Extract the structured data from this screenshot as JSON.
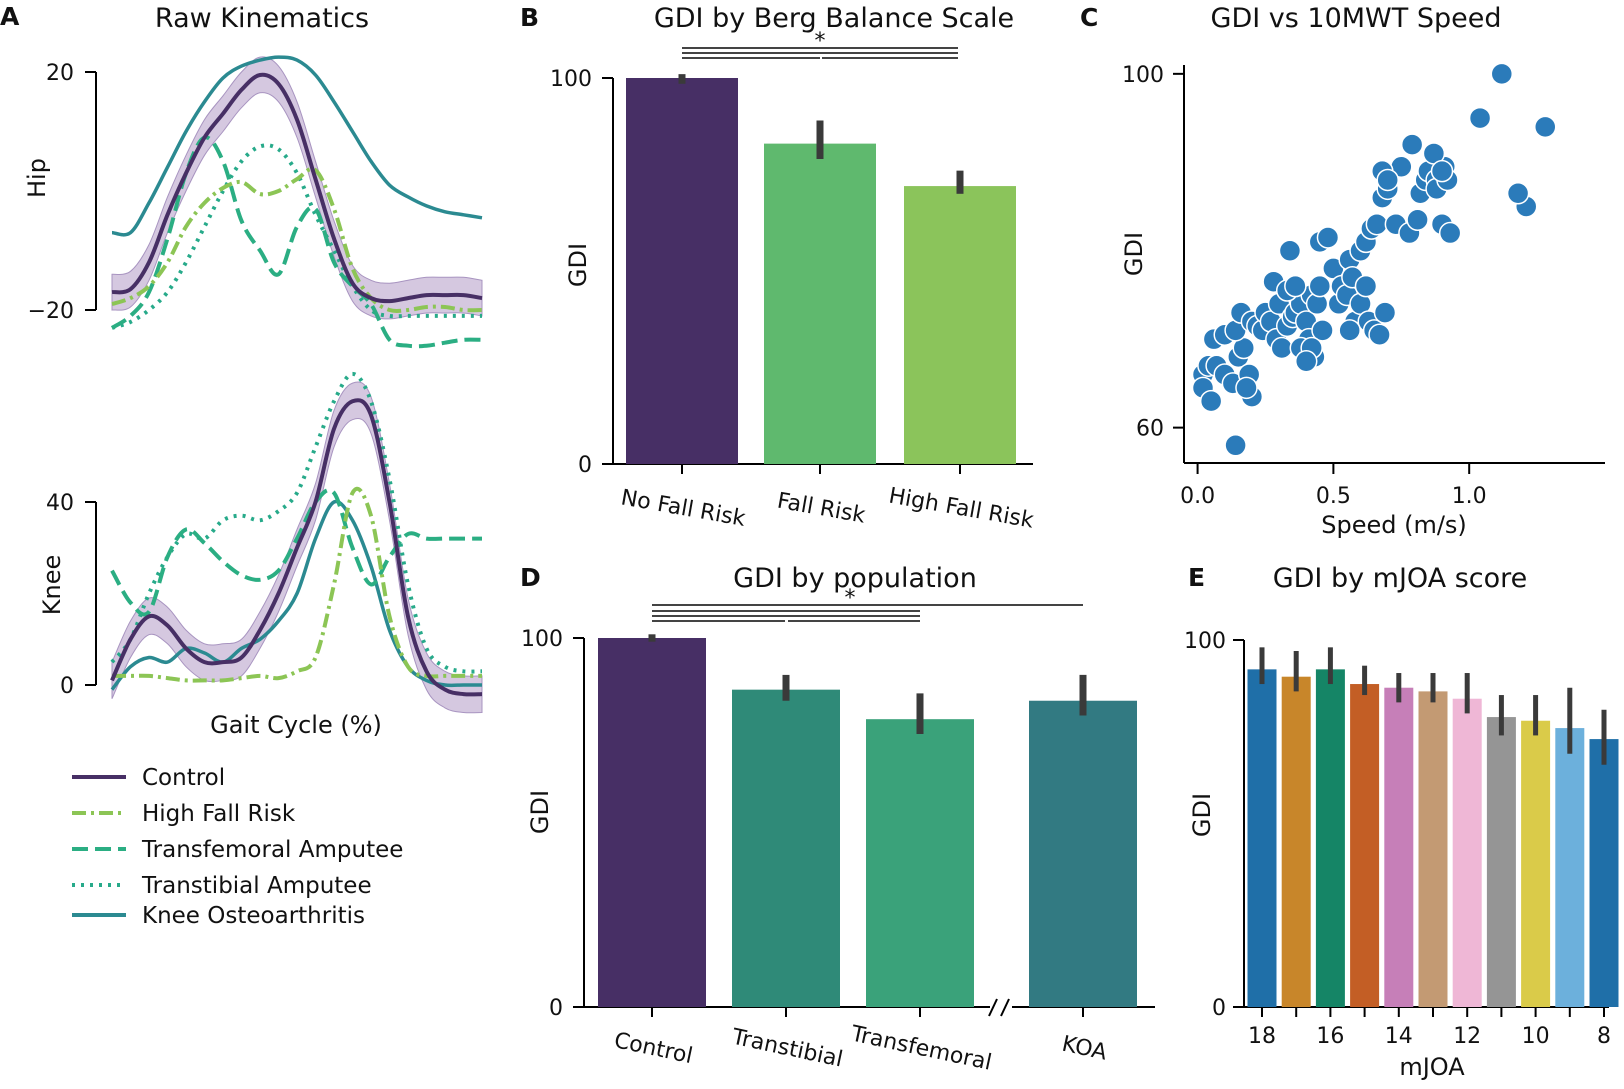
{
  "chart_data": [
    {
      "panel": "A",
      "type": "line",
      "title": "Raw Kinematics",
      "xlabel": "Gait Cycle (%)",
      "x": [
        0,
        5,
        10,
        15,
        20,
        25,
        30,
        35,
        40,
        45,
        50,
        55,
        60,
        65,
        70,
        75,
        80,
        85,
        90,
        95,
        100
      ],
      "subplots": [
        {
          "name": "hip",
          "ylabel": "Hip",
          "yticks": [
            "20",
            "−20"
          ],
          "ytick_values": [
            20,
            -20
          ],
          "ylim": [
            -24,
            26
          ],
          "series": [
            {
              "name": "Control",
              "values": [
                -17,
                -16.5,
                -12,
                -4,
                3,
                9,
                13,
                17,
                19.5,
                18,
                12,
                2,
                -8,
                -15.5,
                -18,
                -18.5,
                -18,
                -17.5,
                -17.5,
                -17.5,
                -18
              ]
            },
            {
              "name": "High Fall Risk",
              "values": [
                -19,
                -18,
                -16,
                -12,
                -6,
                -2,
                0.5,
                1.5,
                -0.5,
                0,
                2,
                3.5,
                -3,
                -13,
                -18,
                -20,
                -20,
                -19.5,
                -19.5,
                -20,
                -20
              ]
            },
            {
              "name": "Transfemoral Amputee",
              "values": [
                -23,
                -21,
                -17,
                -8,
                3,
                9,
                5,
                -5,
                -10,
                -14,
                -6,
                -3,
                -12,
                -16,
                -19,
                -25,
                -26,
                -26,
                -25.5,
                -25,
                -25
              ]
            },
            {
              "name": "Transtibial Amputee",
              "values": [
                -23,
                -22,
                -20,
                -17,
                -12,
                -6,
                0,
                5,
                7.5,
                7,
                3,
                -4,
                -10,
                -16,
                -20,
                -21,
                -21,
                -21,
                -21,
                -21,
                -21
              ]
            },
            {
              "name": "Knee Osteoarthritis",
              "values": [
                -7,
                -7,
                -2,
                4,
                10,
                15,
                19,
                21,
                22,
                22.5,
                22,
                19.5,
                15,
                10,
                5,
                1,
                -1,
                -2.5,
                -3.5,
                -4,
                -4.5
              ]
            }
          ]
        },
        {
          "name": "knee",
          "ylabel": "Knee",
          "yticks": [
            "40",
            "0"
          ],
          "ytick_values": [
            40,
            0
          ],
          "ylim": [
            -4,
            68
          ],
          "series": [
            {
              "name": "Control",
              "values": [
                1,
                10,
                15,
                13,
                8,
                5,
                5,
                6,
                12,
                20,
                30,
                40,
                56,
                62,
                59,
                40,
                15,
                3,
                -1,
                -2,
                -2
              ]
            },
            {
              "name": "High Fall Risk",
              "values": [
                2,
                2,
                2,
                1.5,
                1,
                1,
                1,
                1.5,
                2,
                1.5,
                3,
                6,
                22,
                42,
                37,
                15,
                4,
                2,
                2,
                2,
                2
              ]
            },
            {
              "name": "Transfemoral Amputee",
              "values": [
                25,
                18,
                16,
                28,
                34,
                31,
                27,
                24,
                23,
                25,
                32,
                40,
                42,
                30,
                22,
                28,
                33,
                32,
                32,
                32,
                32
              ]
            },
            {
              "name": "Transtibial Amputee",
              "values": [
                5,
                10,
                20,
                28,
                33,
                32,
                36,
                37,
                36,
                38,
                42,
                52,
                62,
                68,
                62,
                45,
                22,
                8,
                4,
                3,
                3
              ]
            },
            {
              "name": "Knee Osteoarthritis",
              "values": [
                -1,
                4,
                6,
                5,
                8,
                7,
                5,
                8,
                10,
                14,
                20,
                32,
                40,
                36,
                26,
                12,
                4,
                1,
                0,
                0,
                0
              ]
            }
          ]
        }
      ],
      "legend": [
        "Control",
        "High Fall Risk",
        "Transfemoral Amputee",
        "Transtibial Amputee",
        "Knee Osteoarthritis"
      ],
      "legend_position": "bottom"
    },
    {
      "panel": "B",
      "type": "bar",
      "title": "GDI by Berg Balance Scale",
      "ylabel": "GDI",
      "ylim": [
        0,
        100
      ],
      "yticks": [
        0,
        100
      ],
      "categories": [
        "No Fall Risk",
        "Fall Risk",
        "High Fall Risk"
      ],
      "values": [
        100,
        83,
        72
      ],
      "errors": [
        [
          98.5,
          101
        ],
        [
          79,
          89
        ],
        [
          70,
          76
        ]
      ],
      "significance": "*"
    },
    {
      "panel": "C",
      "type": "scatter",
      "title": "GDI vs 10MWT Speed",
      "xlabel": "Speed (m/s)",
      "ylabel": "GDI",
      "xlim": [
        -0.05,
        1.5
      ],
      "ylim": [
        56,
        101
      ],
      "xticks": [
        "0.0",
        "0.5",
        "1.0"
      ],
      "xtick_values": [
        0.0,
        0.5,
        1.0
      ],
      "yticks": [
        "100",
        "60"
      ],
      "ytick_values": [
        100,
        60
      ],
      "points": [
        [
          0.14,
          58
        ],
        [
          0.02,
          66
        ],
        [
          0.04,
          67
        ],
        [
          0.02,
          64.5
        ],
        [
          0.05,
          63
        ],
        [
          0.07,
          67
        ],
        [
          0.1,
          66
        ],
        [
          0.13,
          65
        ],
        [
          0.15,
          68
        ],
        [
          0.17,
          69
        ],
        [
          0.19,
          66
        ],
        [
          0.2,
          63.5
        ],
        [
          0.18,
          64.5
        ],
        [
          0.06,
          70
        ],
        [
          0.1,
          70.5
        ],
        [
          0.14,
          71
        ],
        [
          0.16,
          73
        ],
        [
          0.2,
          72
        ],
        [
          0.22,
          71.5
        ],
        [
          0.24,
          71
        ],
        [
          0.25,
          73
        ],
        [
          0.27,
          72
        ],
        [
          0.29,
          70
        ],
        [
          0.3,
          74
        ],
        [
          0.31,
          69
        ],
        [
          0.33,
          71.5
        ],
        [
          0.35,
          72.5
        ],
        [
          0.36,
          73
        ],
        [
          0.38,
          74
        ],
        [
          0.4,
          72
        ],
        [
          0.41,
          70
        ],
        [
          0.42,
          75
        ],
        [
          0.44,
          74
        ],
        [
          0.45,
          76
        ],
        [
          0.46,
          71
        ],
        [
          0.38,
          69
        ],
        [
          0.43,
          68
        ],
        [
          0.42,
          69
        ],
        [
          0.4,
          67.5
        ],
        [
          0.28,
          76.5
        ],
        [
          0.33,
          75.5
        ],
        [
          0.36,
          76
        ],
        [
          0.34,
          80
        ],
        [
          0.45,
          81
        ],
        [
          0.48,
          81.5
        ],
        [
          0.5,
          78
        ],
        [
          0.52,
          74
        ],
        [
          0.53,
          76
        ],
        [
          0.55,
          75
        ],
        [
          0.56,
          79
        ],
        [
          0.57,
          77
        ],
        [
          0.58,
          72
        ],
        [
          0.6,
          74
        ],
        [
          0.62,
          76
        ],
        [
          0.63,
          72
        ],
        [
          0.65,
          71
        ],
        [
          0.67,
          70.5
        ],
        [
          0.69,
          73
        ],
        [
          0.56,
          71
        ],
        [
          0.6,
          80
        ],
        [
          0.62,
          81
        ],
        [
          0.64,
          82.5
        ],
        [
          0.66,
          83
        ],
        [
          0.68,
          86
        ],
        [
          0.7,
          87
        ],
        [
          0.73,
          83
        ],
        [
          0.75,
          89.5
        ],
        [
          0.78,
          82
        ],
        [
          0.81,
          83.5
        ],
        [
          0.82,
          86.5
        ],
        [
          0.84,
          88
        ],
        [
          0.85,
          89
        ],
        [
          0.88,
          88
        ],
        [
          0.88,
          87
        ],
        [
          0.9,
          83
        ],
        [
          0.91,
          89.5
        ],
        [
          0.92,
          88
        ],
        [
          0.93,
          82
        ],
        [
          0.68,
          89
        ],
        [
          0.7,
          88
        ],
        [
          0.79,
          92
        ],
        [
          0.87,
          91
        ],
        [
          0.9,
          89
        ],
        [
          1.04,
          95
        ],
        [
          1.12,
          100
        ],
        [
          1.28,
          94
        ],
        [
          1.21,
          85
        ],
        [
          1.18,
          86.5
        ]
      ]
    },
    {
      "panel": "D",
      "type": "bar",
      "title": "GDI by population",
      "ylabel": "GDI",
      "ylim": [
        0,
        100
      ],
      "yticks": [
        0,
        100
      ],
      "categories": [
        "Control",
        "Transtibial",
        "Transfemoral",
        "KOA"
      ],
      "values": [
        100,
        86,
        78,
        83
      ],
      "errors": [
        [
          99,
          101
        ],
        [
          83,
          90
        ],
        [
          74,
          85
        ],
        [
          79,
          90
        ]
      ],
      "significance": "*",
      "axis_break": true
    },
    {
      "panel": "E",
      "type": "bar",
      "title": "GDI by mJOA score",
      "xlabel": "mJOA",
      "ylabel": "GDI",
      "ylim": [
        0,
        100
      ],
      "yticks": [
        0,
        100
      ],
      "categories": [
        "18",
        "17",
        "16",
        "15",
        "14",
        "13",
        "12",
        "11",
        "10",
        "9",
        "8"
      ],
      "tick_labels_shown": [
        "18",
        "16",
        "14",
        "12",
        "10",
        "8"
      ],
      "values": [
        92,
        90,
        92,
        88,
        87,
        86,
        84,
        79,
        78,
        76,
        73
      ],
      "errors": [
        [
          88,
          98
        ],
        [
          86,
          97
        ],
        [
          88,
          98
        ],
        [
          85,
          93
        ],
        [
          83,
          91
        ],
        [
          83,
          91
        ],
        [
          80,
          91
        ],
        [
          74,
          85
        ],
        [
          74,
          85
        ],
        [
          69,
          87
        ],
        [
          66,
          81
        ]
      ],
      "colors": [
        "#1f6fa8",
        "#c8862a",
        "#158566",
        "#c35e25",
        "#c67fb8",
        "#c39a73",
        "#efb7d6",
        "#959595",
        "#dacb49",
        "#6cb0dc",
        "#1f6fa8"
      ]
    }
  ],
  "panel_labels": [
    "A",
    "B",
    "C",
    "D",
    "E"
  ],
  "colors": {
    "Control": "#472f65",
    "High Fall Risk": "#8cc555",
    "Transfemoral Amputee": "#2bae83",
    "Transtibial Amputee": "#27aa8a",
    "Knee Osteoarthritis": "#2b8a91",
    "Fall Risk bar": "#5fb96e",
    "High Fall Risk bar": "#8bc45b",
    "Transtibial bar": "#2f8a78",
    "Transfemoral bar": "#3aa27a",
    "KOA bar": "#327a82",
    "scatter": "#2b7bba",
    "control_band": "#c7b6d6",
    "errorbar": "#3a3a3a"
  }
}
